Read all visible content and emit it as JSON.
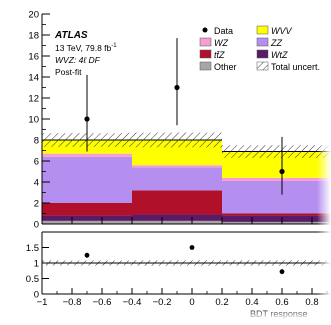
{
  "chart_data": {
    "type": "bar",
    "stacked": true,
    "experiment": "ATLAS",
    "energy_lumi": "13 TeV, 79.8 fb",
    "lumi_exponent": "-1",
    "region": "WVZ: 4ℓ DF",
    "fit_label": "Post-fit",
    "xlabel": "BDT response",
    "xlim": [
      -1,
      1
    ],
    "ylim": [
      0,
      20
    ],
    "ratio_ylim": [
      0,
      2
    ],
    "bin_edges": [
      -1,
      -0.4,
      0.2,
      1.0
    ],
    "x_ticks": [
      "−1",
      "−0.8",
      "−0.6",
      "−0.4",
      "−0.2",
      "0",
      "0.2",
      "0.4",
      "0.6",
      "0.8"
    ],
    "x_tick_values": [
      -1,
      -0.8,
      -0.6,
      -0.4,
      -0.2,
      0,
      0.2,
      0.4,
      0.6,
      0.8
    ],
    "y_ticks": [
      "0",
      "2",
      "4",
      "6",
      "8",
      "10",
      "12",
      "14",
      "16",
      "18",
      "20"
    ],
    "y_tick_values": [
      0,
      2,
      4,
      6,
      8,
      10,
      12,
      14,
      16,
      18,
      20
    ],
    "ratio_ticks": [
      "0",
      "0.5",
      "1",
      "1.5"
    ],
    "ratio_tick_values": [
      0,
      0.5,
      1,
      1.5
    ],
    "series": [
      {
        "name": "Other",
        "color": "#a6a6a6",
        "values": [
          0.3,
          0.3,
          0.2
        ]
      },
      {
        "name": "WtZ",
        "color": "#5a1a66",
        "values": [
          0.5,
          0.6,
          0.6
        ]
      },
      {
        "name": "ttZ",
        "color": "#b0102a",
        "values": [
          1.2,
          2.3,
          0.2
        ]
      },
      {
        "name": "ZZ",
        "color": "#b58ff0",
        "values": [
          4.4,
          2.2,
          3.1
        ]
      },
      {
        "name": "WZ",
        "color": "#f49fd0",
        "values": [
          0.3,
          0.2,
          0.3
        ]
      },
      {
        "name": "WVV",
        "color": "#ffff00",
        "values": [
          1.3,
          2.4,
          2.5
        ]
      }
    ],
    "uncertainty": {
      "name": "Total uncert.",
      "half_width": [
        0.65,
        0.7,
        0.6
      ]
    },
    "data": {
      "name": "Data",
      "x": [
        -0.7,
        -0.1,
        0.6
      ],
      "y": [
        10,
        13,
        5
      ],
      "yerr_up": [
        4.2,
        4.7,
        3.3
      ],
      "yerr_down": [
        3.1,
        3.6,
        2.2
      ]
    },
    "ratio": {
      "x": [
        -0.7,
        0.0,
        0.6
      ],
      "y": [
        1.25,
        1.5,
        0.72
      ],
      "err_up": [
        0.08,
        0.05,
        0.08
      ],
      "err_down": [
        0.08,
        0.05,
        0.08
      ]
    },
    "legend": [
      {
        "label": "Data",
        "kind": "marker"
      },
      {
        "label": "WVV",
        "kind": "box",
        "color": "#ffff00"
      },
      {
        "label": "WZ",
        "kind": "box",
        "color": "#f49fd0"
      },
      {
        "label": "ZZ",
        "kind": "box",
        "color": "#b58ff0"
      },
      {
        "label": "tt̄Z",
        "kind": "box",
        "color": "#b0102a"
      },
      {
        "label": "WtZ",
        "kind": "box",
        "color": "#5a1a66"
      },
      {
        "label": "Other",
        "kind": "box",
        "color": "#a6a6a6"
      },
      {
        "label": "Total uncert.",
        "kind": "hatch"
      }
    ]
  }
}
